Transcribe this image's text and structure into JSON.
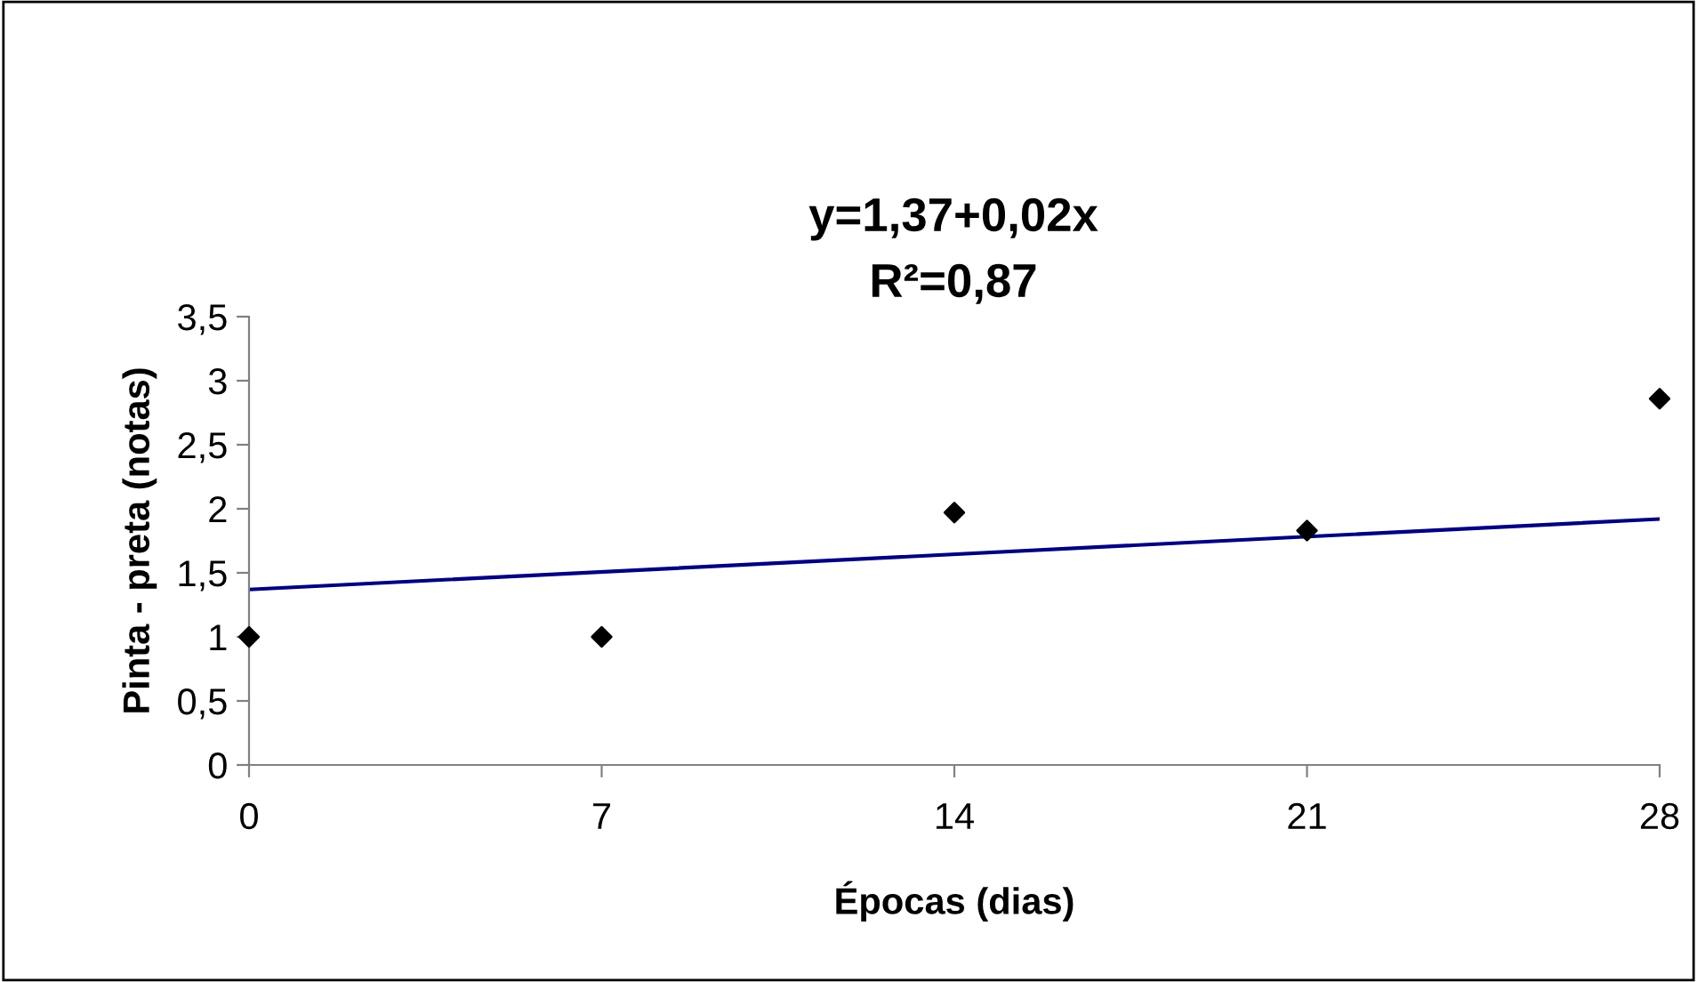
{
  "chart_data": {
    "type": "scatter",
    "xlabel": "Épocas (dias)",
    "ylabel": "Pinta - preta (notas)",
    "annotations": [
      "y=1,37+0,02x",
      "R²=0,87"
    ],
    "xlim": [
      0,
      28
    ],
    "xticks": [
      0,
      7,
      14,
      21,
      28
    ],
    "ylim": [
      0,
      3.5
    ],
    "yticks": [
      0,
      {
        "value": 0.5,
        "label": "0,5"
      },
      1,
      {
        "value": 1.5,
        "label": "1,5"
      },
      2,
      {
        "value": 2.5,
        "label": "2,5"
      },
      3,
      {
        "value": 3.5,
        "label": "3,5"
      }
    ],
    "grid": false,
    "legend": false,
    "series": [
      {
        "marker": "diamond",
        "color": "#000000",
        "x": [
          0,
          7,
          14,
          21,
          28
        ],
        "values": [
          1,
          1,
          1.97,
          1.83,
          2.86
        ]
      },
      {
        "type": "line",
        "marker": "none",
        "color": "#000080",
        "x": [
          0,
          28
        ],
        "values": [
          1.37,
          1.92
        ]
      }
    ]
  }
}
